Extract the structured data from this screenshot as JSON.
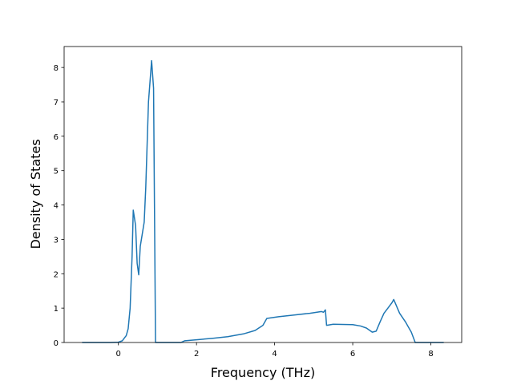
{
  "chart_data": {
    "type": "line",
    "x_label": "Frequency (THz)",
    "y_label": "Density of States",
    "x": [
      -0.93,
      -0.2,
      0.0,
      0.1,
      0.2,
      0.25,
      0.3,
      0.35,
      0.38,
      0.44,
      0.48,
      0.52,
      0.56,
      0.66,
      0.7,
      0.77,
      0.85,
      0.9,
      0.95,
      1.6,
      1.7,
      2.0,
      2.4,
      2.8,
      3.2,
      3.5,
      3.7,
      3.8,
      4.1,
      4.5,
      4.9,
      5.2,
      5.25,
      5.3,
      5.33,
      5.5,
      6.0,
      6.2,
      6.35,
      6.5,
      6.6,
      6.7,
      6.8,
      6.9,
      7.0,
      7.05,
      7.2,
      7.35,
      7.5,
      7.6,
      8.33
    ],
    "values": [
      0,
      0,
      0.01,
      0.05,
      0.2,
      0.4,
      1.0,
      2.5,
      3.85,
      3.4,
      2.3,
      1.97,
      2.8,
      3.5,
      4.5,
      7.0,
      8.2,
      7.4,
      0,
      0,
      0.05,
      0.08,
      0.12,
      0.17,
      0.25,
      0.35,
      0.5,
      0.7,
      0.75,
      0.8,
      0.85,
      0.9,
      0.88,
      0.95,
      0.5,
      0.53,
      0.52,
      0.48,
      0.42,
      0.3,
      0.33,
      0.6,
      0.85,
      1.0,
      1.15,
      1.25,
      0.85,
      0.6,
      0.3,
      0,
      0
    ],
    "color": "#1f77b4",
    "xlim": [
      -1.39,
      8.79
    ],
    "xticks": [
      0,
      2,
      4,
      6,
      8
    ],
    "ylim": [
      0,
      8.61
    ],
    "yticks": [
      0,
      1,
      2,
      3,
      4,
      5,
      6,
      7,
      8
    ]
  }
}
